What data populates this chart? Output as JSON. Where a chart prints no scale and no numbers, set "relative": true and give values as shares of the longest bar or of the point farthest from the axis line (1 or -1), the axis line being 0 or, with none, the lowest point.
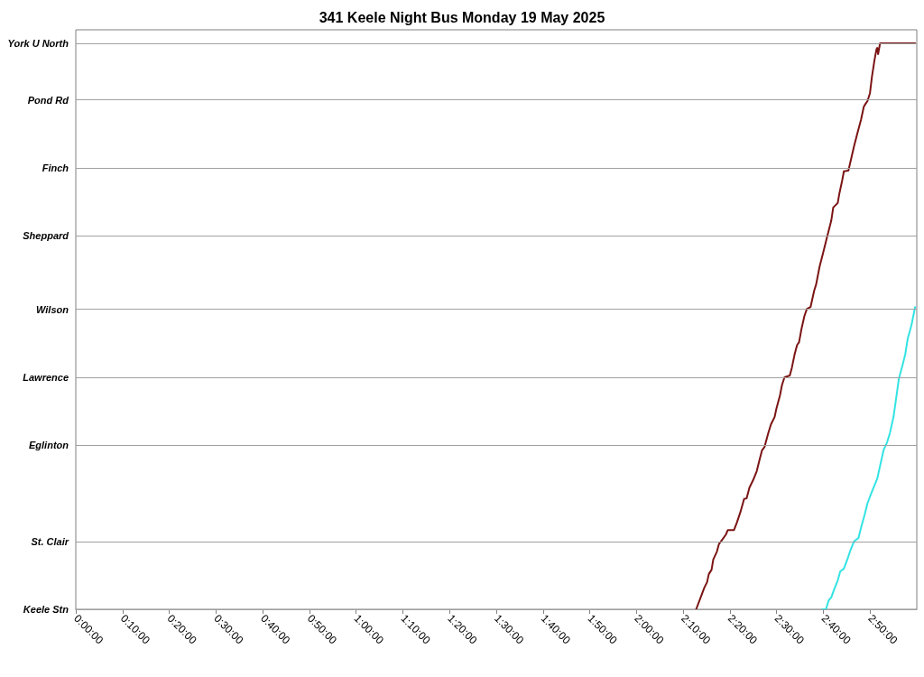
{
  "chart_data": {
    "type": "line",
    "title": "341 Keele Night Bus Monday 19 May 2025",
    "relative": true,
    "xlim": [
      0,
      3
    ],
    "xticks": [
      {
        "value": 0,
        "label": "0:00:00"
      },
      {
        "value": 0.1667,
        "label": "0:10:00"
      },
      {
        "value": 0.3333,
        "label": "0:20:00"
      },
      {
        "value": 0.5,
        "label": "0:30:00"
      },
      {
        "value": 0.6667,
        "label": "0:40:00"
      },
      {
        "value": 0.8333,
        "label": "0:50:00"
      },
      {
        "value": 1,
        "label": "1:00:00"
      },
      {
        "value": 1.1667,
        "label": "1:10:00"
      },
      {
        "value": 1.3333,
        "label": "1:20:00"
      },
      {
        "value": 1.5,
        "label": "1:30:00"
      },
      {
        "value": 1.6667,
        "label": "1:40:00"
      },
      {
        "value": 1.8333,
        "label": "1:50:00"
      },
      {
        "value": 2,
        "label": "2:00:00"
      },
      {
        "value": 2.1667,
        "label": "2:10:00"
      },
      {
        "value": 2.3333,
        "label": "2:20:00"
      },
      {
        "value": 2.5,
        "label": "2:30:00"
      },
      {
        "value": 2.6667,
        "label": "2:40:00"
      },
      {
        "value": 2.8333,
        "label": "2:50:00"
      }
    ],
    "ref_lines": [
      {
        "axis": "y",
        "value": 0,
        "label": "Keele Stn"
      },
      {
        "axis": "y",
        "value": 0.119,
        "label": "St. Clair"
      },
      {
        "axis": "y",
        "value": 0.289,
        "label": "Eglinton"
      },
      {
        "axis": "y",
        "value": 0.413,
        "label": "Lawrence"
      },
      {
        "axis": "y",
        "value": 0.534,
        "label": "Wilson"
      },
      {
        "axis": "y",
        "value": 0.656,
        "label": "Sheppard"
      },
      {
        "axis": "y",
        "value": 0.781,
        "label": "Finch"
      },
      {
        "axis": "y",
        "value": 0.9,
        "label": "Pond Rd"
      },
      {
        "axis": "y",
        "value": 1,
        "label": "York U North"
      }
    ],
    "marker": "none",
    "line_style": "solid",
    "series": [
      {
        "color": "#7b1414",
        "x": [
          2.213,
          2.229,
          2.242,
          2.252,
          2.258,
          2.268,
          2.274,
          2.287,
          2.294,
          2.306,
          2.319,
          2.326,
          2.348,
          2.358,
          2.371,
          2.384,
          2.393,
          2.403,
          2.416,
          2.429,
          2.438,
          2.448,
          2.457,
          2.47,
          2.48,
          2.493,
          2.499,
          2.512,
          2.519,
          2.528,
          2.547,
          2.554,
          2.564,
          2.573,
          2.58,
          2.589,
          2.599,
          2.608,
          2.621,
          2.634,
          2.641,
          2.653,
          2.666,
          2.679,
          2.695,
          2.702,
          2.718,
          2.724,
          2.734,
          2.74,
          2.756,
          2.763,
          2.776,
          2.788,
          2.801,
          2.811,
          2.817,
          2.824,
          2.833,
          2.84,
          2.849,
          2.856,
          2.859,
          2.862,
          2.869,
          2.994
        ],
        "values": [
          0,
          0.021,
          0.038,
          0.048,
          0.062,
          0.07,
          0.088,
          0.102,
          0.115,
          0.123,
          0.132,
          0.14,
          0.14,
          0.153,
          0.172,
          0.195,
          0.196,
          0.215,
          0.228,
          0.244,
          0.262,
          0.281,
          0.287,
          0.311,
          0.327,
          0.34,
          0.354,
          0.378,
          0.396,
          0.41,
          0.413,
          0.426,
          0.45,
          0.467,
          0.472,
          0.496,
          0.518,
          0.531,
          0.534,
          0.563,
          0.574,
          0.605,
          0.63,
          0.656,
          0.687,
          0.71,
          0.718,
          0.735,
          0.758,
          0.774,
          0.775,
          0.79,
          0.818,
          0.841,
          0.865,
          0.888,
          0.893,
          0.898,
          0.912,
          0.941,
          0.97,
          0.989,
          0.992,
          0.981,
          1,
          1
        ]
      },
      {
        "color": "#33e3e3",
        "x": [
          2.663,
          2.676,
          2.686,
          2.695,
          2.705,
          2.718,
          2.727,
          2.74,
          2.753,
          2.763,
          2.776,
          2.792,
          2.801,
          2.814,
          2.824,
          2.833,
          2.846,
          2.859,
          2.872,
          2.882,
          2.894,
          2.904,
          2.917,
          2.927,
          2.936,
          2.949,
          2.959,
          2.968,
          2.981,
          2.994
        ],
        "values": [
          0,
          0,
          0.016,
          0.021,
          0.035,
          0.051,
          0.067,
          0.072,
          0.089,
          0.104,
          0.12,
          0.126,
          0.144,
          0.167,
          0.187,
          0.199,
          0.215,
          0.231,
          0.26,
          0.282,
          0.295,
          0.311,
          0.34,
          0.375,
          0.407,
          0.431,
          0.451,
          0.479,
          0.502,
          0.534
        ]
      }
    ]
  }
}
